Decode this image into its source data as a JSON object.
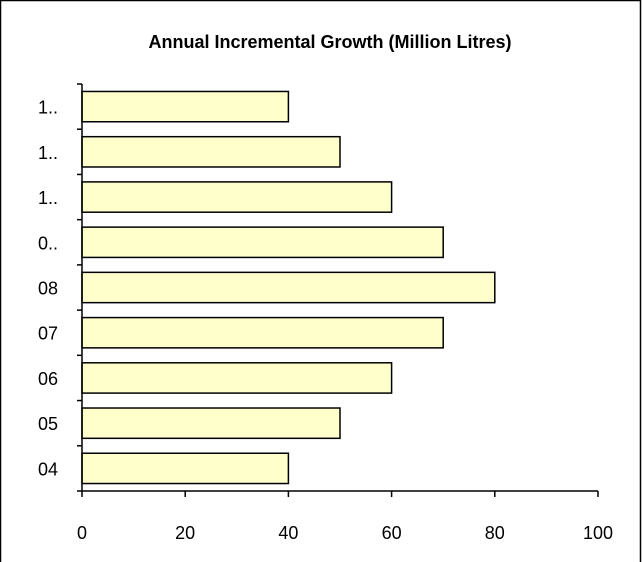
{
  "chart_data": {
    "type": "bar",
    "orientation": "horizontal",
    "title": "Annual Incremental Growth (Million Litres)",
    "xlabel": "",
    "ylabel": "",
    "categories": [
      "04",
      "05",
      "06",
      "07",
      "08",
      "0..",
      "1..",
      "1..",
      "1.."
    ],
    "values": [
      40,
      50,
      60,
      70,
      80,
      70,
      60,
      50,
      40
    ],
    "xlim": [
      0,
      100
    ],
    "x_ticks": [
      0,
      20,
      40,
      60,
      80,
      100
    ],
    "grid": false,
    "legend": "none",
    "colors": {
      "bar_fill": "#FFFFCC",
      "bar_stroke": "#000000",
      "axis": "#000000",
      "background": "#FFFFFF",
      "frame": "#000000"
    }
  }
}
